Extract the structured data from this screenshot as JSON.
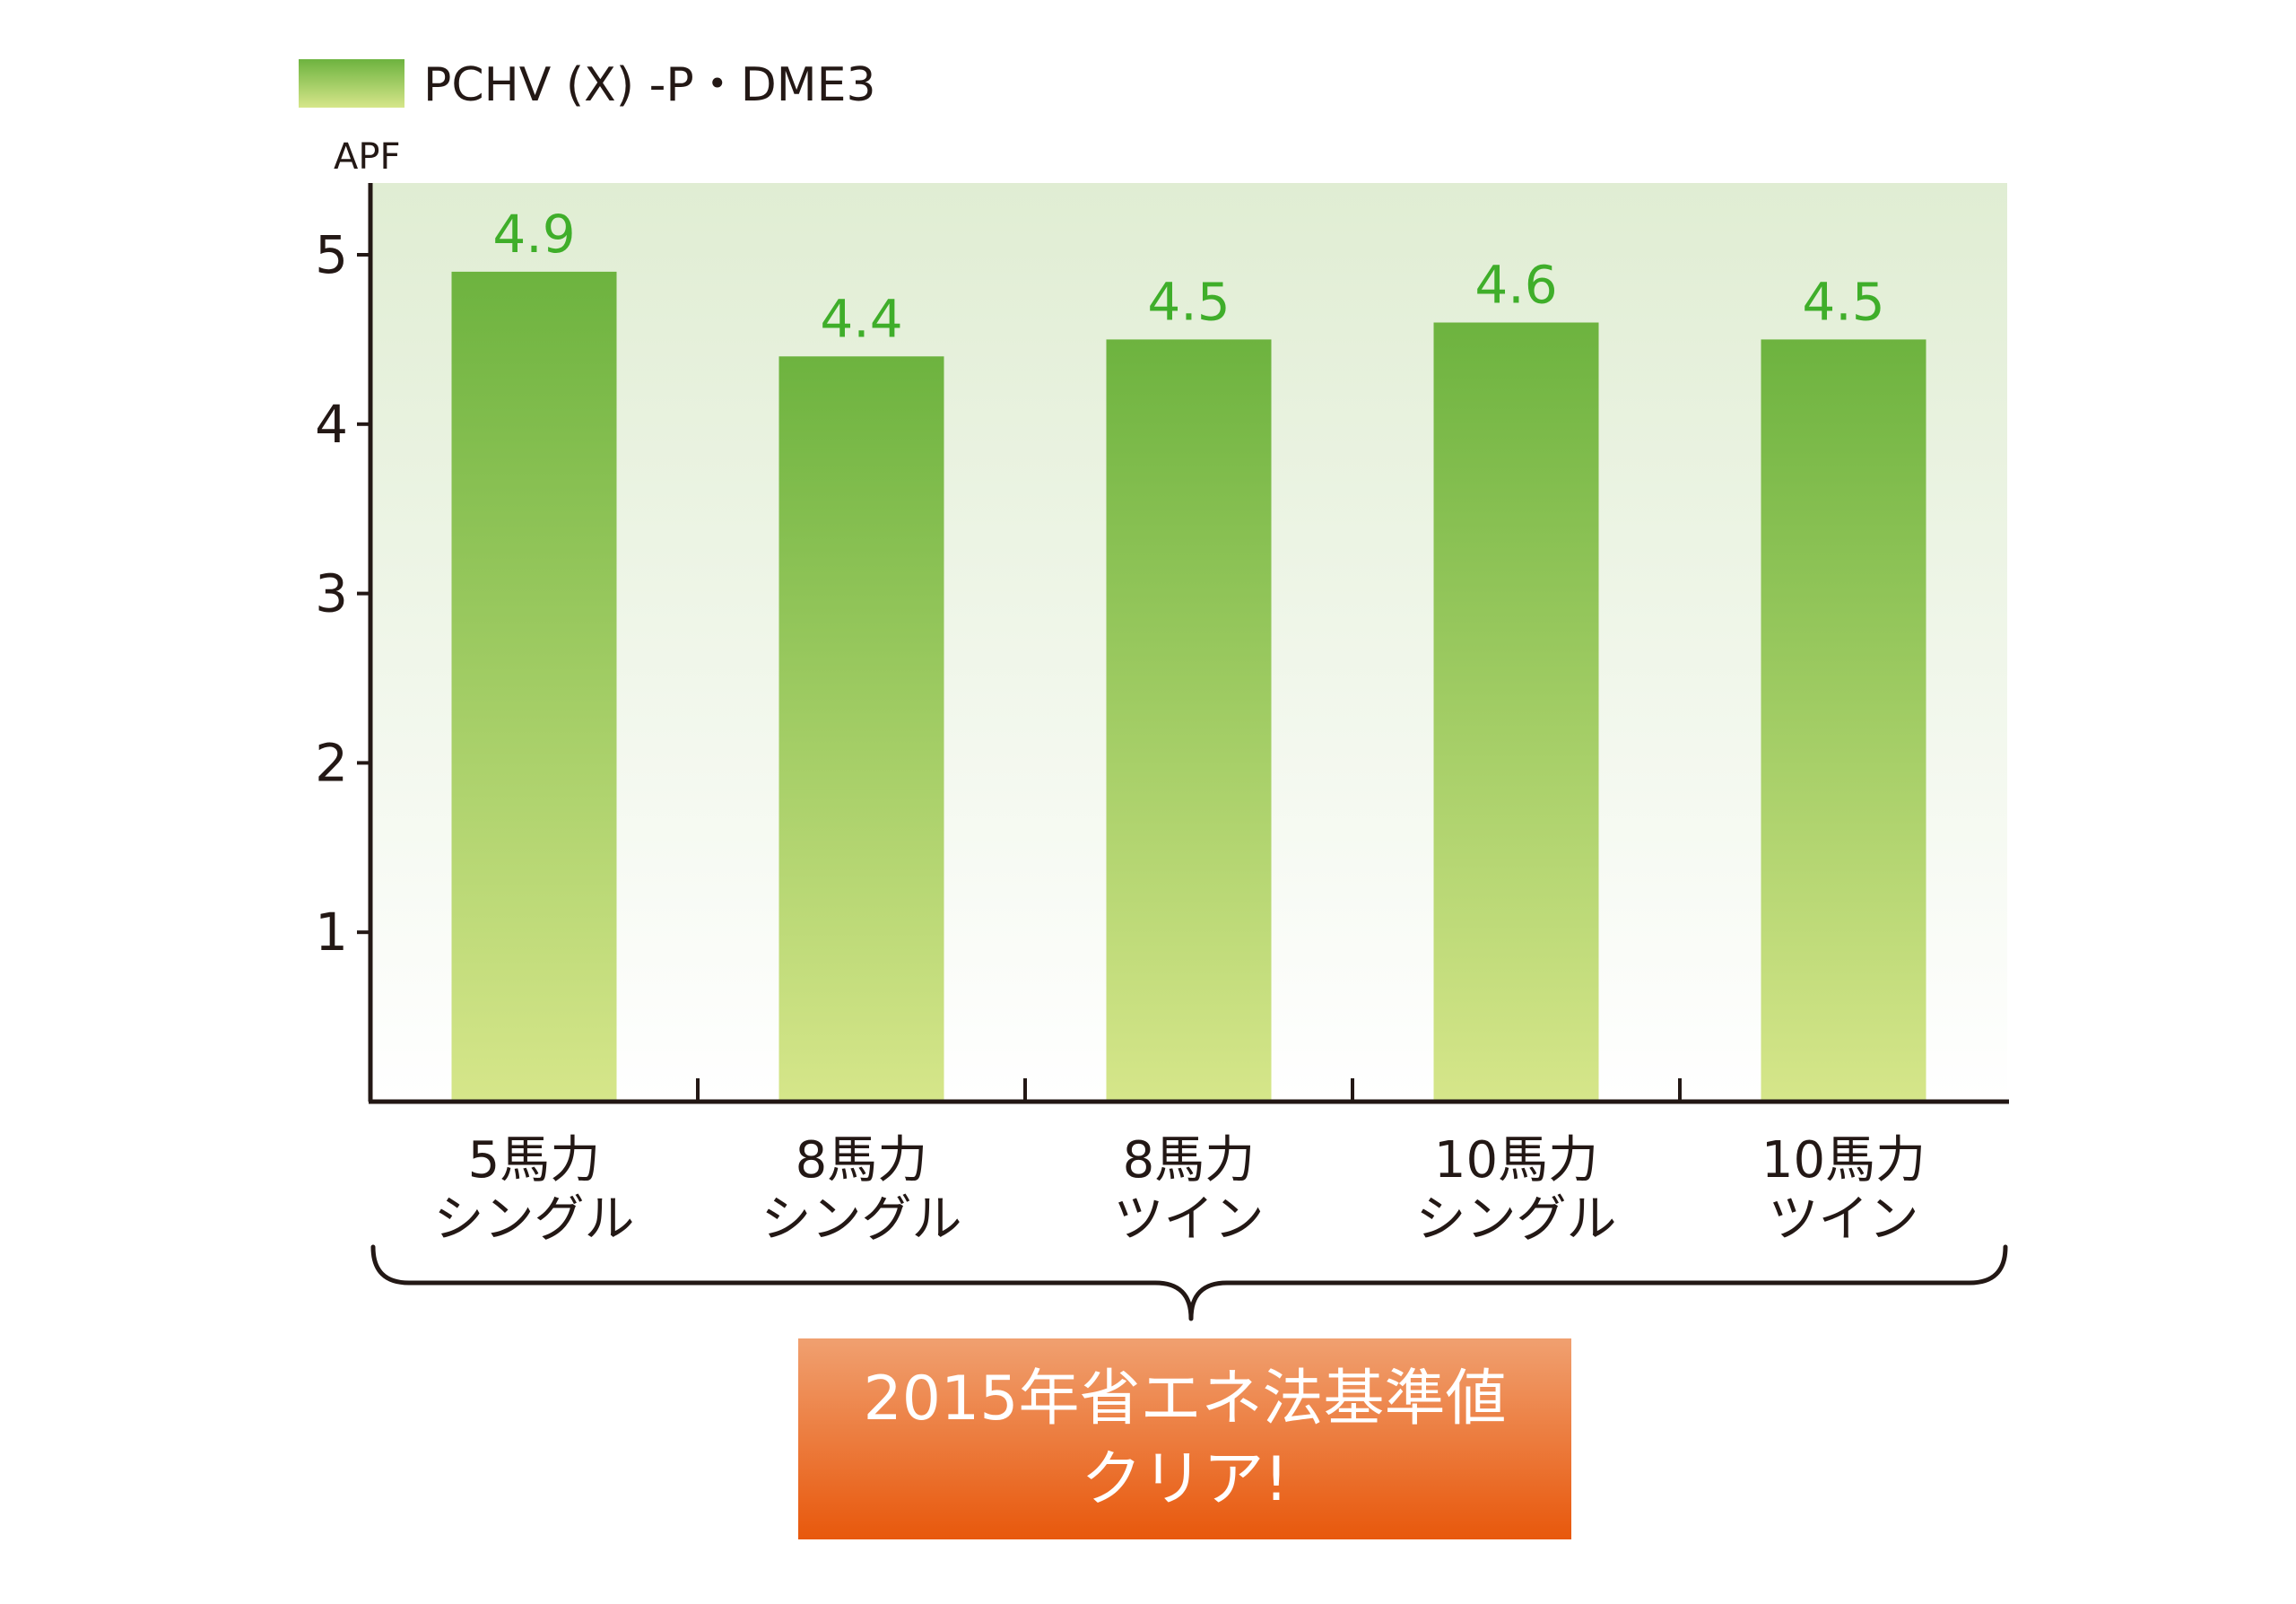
{
  "chart_data": {
    "type": "bar",
    "legend": {
      "label": "PCHV (X) -P・DME3",
      "color": "#6db33f",
      "position": "top-left"
    },
    "ylabel": "APF",
    "ylim": [
      0,
      5.4
    ],
    "yticks": [
      1,
      2,
      3,
      4,
      5
    ],
    "grid": false,
    "categories": [
      [
        "5馬力",
        "シングル"
      ],
      [
        "8馬力",
        "シングル"
      ],
      [
        "8馬力",
        "ツイン"
      ],
      [
        "10馬力",
        "シングル"
      ],
      [
        "10馬力",
        "ツイン"
      ]
    ],
    "series": [
      {
        "name": "PCHV (X) -P・DME3",
        "values": [
          4.9,
          4.4,
          4.5,
          4.6,
          4.5
        ]
      }
    ],
    "value_labels": [
      "4.9",
      "4.4",
      "4.5",
      "4.6",
      "4.5"
    ],
    "colors": {
      "bar_top": "#6db33f",
      "bar_bottom": "#d6e68a",
      "plot_bg_top": "#e0edd3",
      "plot_bg_bottom": "#ffffff",
      "value_label": "#3fae2a",
      "callout_top": "#f0a070",
      "callout_bottom": "#e8580c"
    }
  },
  "callout": {
    "line1": "2015年省エネ法基準値",
    "line2": "クリア!"
  }
}
